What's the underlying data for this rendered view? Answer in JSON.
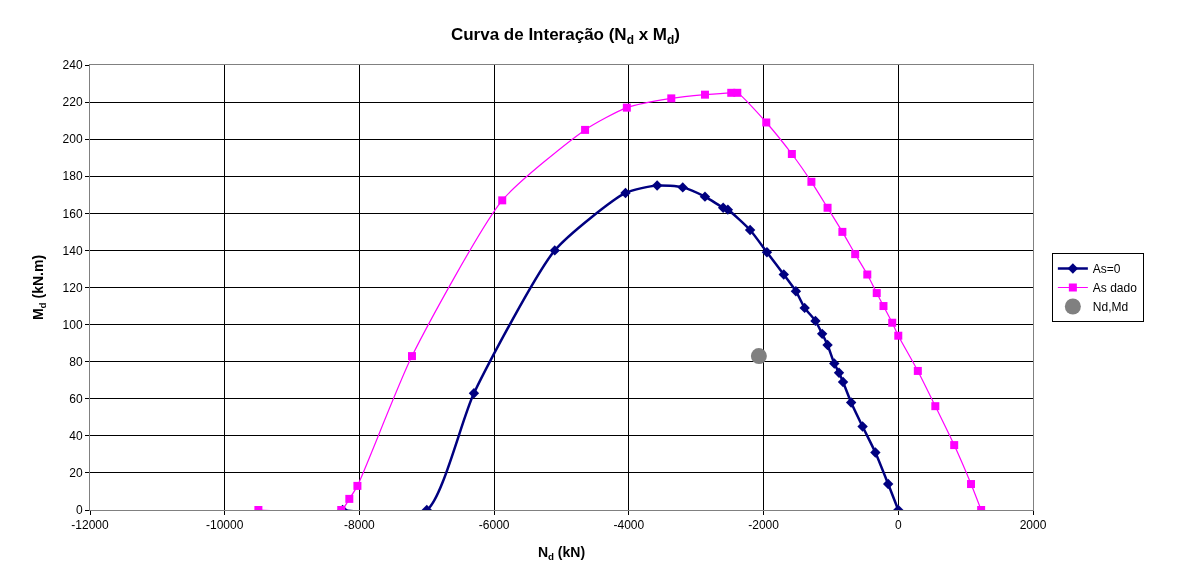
{
  "chart_data": {
    "type": "line",
    "title": "Curva de Interação (N$_{d}$ x M$_{d}$)",
    "xlabel": "N$_{d}$ (kN)",
    "ylabel": "M$_{d}$ (kN.m)",
    "xlim": [
      -12000,
      2000
    ],
    "xticks": [
      -12000,
      -10000,
      -8000,
      -6000,
      -4000,
      -2000,
      0,
      2000
    ],
    "ylim": [
      0,
      240
    ],
    "yticks": [
      0,
      20,
      40,
      60,
      80,
      100,
      120,
      140,
      160,
      180,
      200,
      220,
      240
    ],
    "grid": true,
    "legend": "right",
    "series": [
      {
        "name": "As=0",
        "color": "#000080",
        "marker": "diamond",
        "x": [
          -8250,
          -7000,
          -6300,
          -5100,
          -4050,
          -3580,
          -3200,
          -2870,
          -2600,
          -2530,
          -2200,
          -1950,
          -1700,
          -1520,
          -1390,
          -1230,
          -1130,
          -1050,
          -950,
          -880,
          -820,
          -700,
          -530,
          -340,
          -150,
          0
        ],
        "values": [
          0,
          0,
          63,
          140,
          171,
          175,
          174,
          169,
          163,
          162,
          151,
          139,
          127,
          118,
          109,
          102,
          95,
          89,
          79,
          74,
          69,
          58,
          45,
          31,
          14,
          0
        ]
      },
      {
        "name": "As dado",
        "color": "#ff00ff",
        "marker": "square",
        "x": [
          -9500,
          -8270,
          -8150,
          -8030,
          -7220,
          -5880,
          -4650,
          -4030,
          -3370,
          -2870,
          -2480,
          -2390,
          -1960,
          -1580,
          -1290,
          -1050,
          -830,
          -640,
          -460,
          -320,
          -220,
          -90,
          0,
          290,
          550,
          830,
          1080,
          1230
        ],
        "values": [
          0,
          0,
          6,
          13,
          83,
          167,
          205,
          217,
          222,
          224,
          225,
          225,
          209,
          192,
          177,
          163,
          150,
          138,
          127,
          117,
          110,
          101,
          94,
          75,
          56,
          35,
          14,
          0
        ]
      },
      {
        "name": "Nd,Md",
        "color": "#808080",
        "type": "scatter",
        "marker": "circle",
        "x": [
          -2070
        ],
        "values": [
          83
        ]
      }
    ]
  }
}
